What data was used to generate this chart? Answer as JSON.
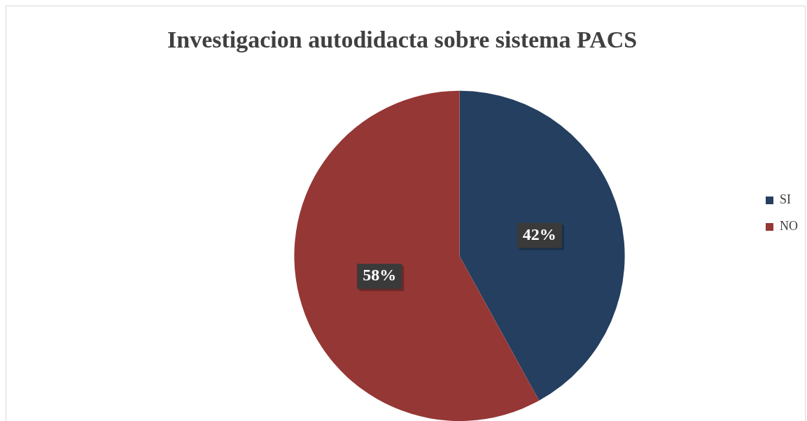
{
  "chart_data": {
    "type": "pie",
    "title": "Investigacion autodidacta sobre sistema PACS",
    "categories": [
      "SI",
      "NO"
    ],
    "values": [
      42,
      58
    ],
    "colors": [
      "#243f60",
      "#953735"
    ],
    "value_labels": [
      "42%",
      "58%"
    ],
    "legend": "right"
  }
}
